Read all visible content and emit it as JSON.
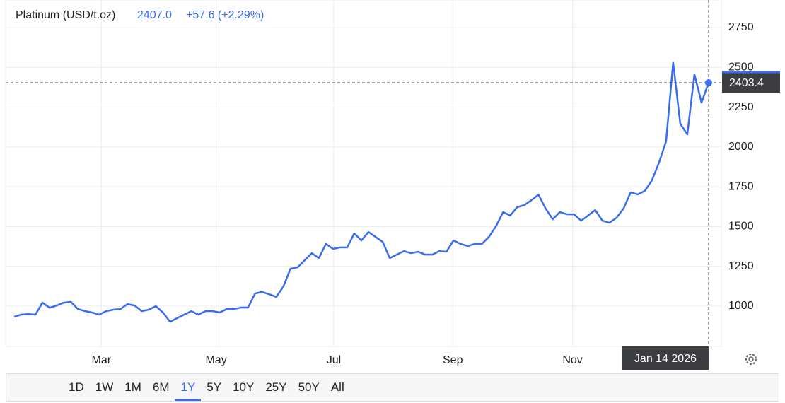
{
  "chart_data": {
    "type": "line",
    "title": "Platinum (USD/t.oz)",
    "price": "2407.0",
    "change": "+57.6 (+2.29%)",
    "crosshair_value": 2403.4,
    "crosshair_label": "Jan 14 2026",
    "series": [
      {
        "name": "Platinum",
        "color": "#3a6cf0",
        "values": [
          933,
          947,
          950,
          947,
          1022,
          990,
          1004,
          1022,
          1027,
          982,
          969,
          960,
          947,
          969,
          978,
          982,
          1013,
          1004,
          969,
          978,
          1000,
          960,
          902,
          925,
          947,
          969,
          947,
          969,
          969,
          960,
          982,
          982,
          991,
          991,
          1080,
          1089,
          1075,
          1058,
          1124,
          1235,
          1244,
          1289,
          1333,
          1302,
          1391,
          1360,
          1369,
          1369,
          1457,
          1413,
          1466,
          1435,
          1404,
          1302,
          1324,
          1346,
          1333,
          1342,
          1324,
          1324,
          1346,
          1342,
          1413,
          1391,
          1378,
          1391,
          1391,
          1435,
          1502,
          1591,
          1569,
          1622,
          1635,
          1666,
          1700,
          1613,
          1546,
          1591,
          1577,
          1577,
          1537,
          1569,
          1604,
          1537,
          1524,
          1555,
          1613,
          1715,
          1702,
          1724,
          1790,
          1901,
          2035,
          2530,
          2146,
          2079,
          2456,
          2279,
          2403
        ]
      }
    ],
    "xlim": [
      -1.2,
      99.8
    ],
    "xticks": [
      {
        "value": 12.3,
        "label": "Mar"
      },
      {
        "value": 28.5,
        "label": "May"
      },
      {
        "value": 45.1,
        "label": "Jul"
      },
      {
        "value": 61.9,
        "label": "Sep"
      },
      {
        "value": 78.8,
        "label": "Nov"
      }
    ],
    "ylim": [
      747,
      2923
    ],
    "yticks": [
      1000,
      1250,
      1500,
      1750,
      2000,
      2250,
      2500,
      2750
    ],
    "grid": true
  },
  "range_buttons": [
    "1D",
    "1W",
    "1M",
    "6M",
    "1Y",
    "5Y",
    "10Y",
    "25Y",
    "50Y",
    "All"
  ],
  "active_range": "1Y"
}
